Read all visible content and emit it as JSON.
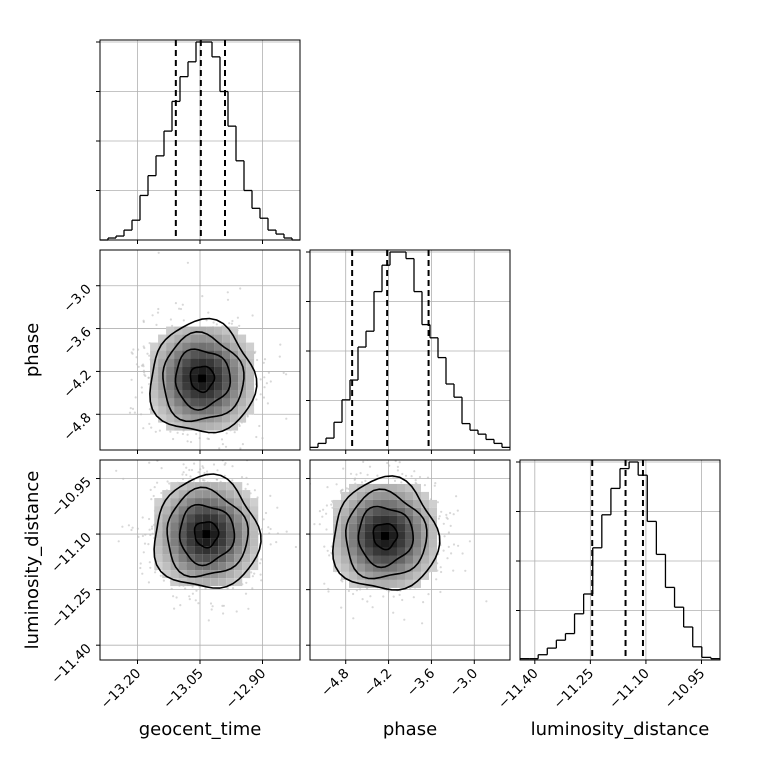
{
  "chart_data": {
    "type": "corner",
    "parameters": [
      "geocent_time",
      "phase",
      "luminosity_distance"
    ],
    "axis_labels": {
      "x": [
        "geocent_time",
        "phase",
        "luminosity_distance"
      ],
      "y": [
        "",
        "phase",
        "luminosity_distance"
      ]
    },
    "ranges": {
      "geocent_time": [
        -13.29,
        -12.81
      ],
      "phase": [
        -5.3,
        -2.5
      ],
      "luminosity_distance": [
        -11.44,
        -10.9
      ]
    },
    "ticks": {
      "geocent_time": [
        -13.2,
        -13.05,
        -12.9
      ],
      "phase": [
        -4.8,
        -4.2,
        -3.6,
        -3.0
      ],
      "luminosity_distance": [
        -11.4,
        -11.25,
        -11.1,
        -10.95
      ]
    },
    "tick_labels": {
      "geocent_time": [
        "−13.20",
        "−13.05",
        "−12.90"
      ],
      "phase": [
        "−4.8",
        "−4.2",
        "−3.6",
        "−3.0"
      ],
      "luminosity_distance": [
        "−11.40",
        "−11.25",
        "−11.10",
        "−10.95"
      ]
    },
    "marginals": {
      "geocent_time": {
        "bin_edges_range": [
          -13.29,
          -12.81
        ],
        "counts": [
          0,
          2,
          4,
          10,
          20,
          45,
          65,
          85,
          110,
          140,
          165,
          180,
          200,
          200,
          185,
          150,
          115,
          80,
          50,
          32,
          22,
          10,
          6,
          2,
          0
        ],
        "quantiles": [
          -13.108,
          -13.048,
          -12.99
        ]
      },
      "phase": {
        "bin_edges_range": [
          -5.3,
          -2.5
        ],
        "counts": [
          2,
          5,
          9,
          21,
          38,
          53,
          78,
          90,
          120,
          140,
          150,
          150,
          145,
          120,
          95,
          85,
          70,
          50,
          40,
          20,
          15,
          12,
          8,
          5,
          2
        ],
        "quantiles": [
          -4.71,
          -4.22,
          -3.64
        ]
      },
      "luminosity_distance": {
        "bin_edges_range": [
          -11.44,
          -10.9
        ],
        "counts": [
          1,
          1,
          4,
          9,
          15,
          20,
          35,
          50,
          85,
          110,
          130,
          145,
          150,
          140,
          105,
          80,
          55,
          40,
          25,
          10,
          2,
          1
        ],
        "quantiles": [
          -11.245,
          -11.155,
          -11.108
        ]
      }
    },
    "joint_2d": [
      {
        "x": "geocent_time",
        "y": "phase",
        "peak": [
          -13.045,
          -4.3
        ],
        "levels": 4
      },
      {
        "x": "geocent_time",
        "y": "luminosity_distance",
        "peak": [
          -13.035,
          -11.1
        ],
        "levels": 4
      },
      {
        "x": "phase",
        "y": "luminosity_distance",
        "peak": [
          -4.25,
          -11.105
        ],
        "levels": 4
      }
    ],
    "legend": "none",
    "grid": true
  },
  "colors": {
    "line": "#000000",
    "grid": "#b0b0b0",
    "scatter": "#b8b8b8"
  }
}
